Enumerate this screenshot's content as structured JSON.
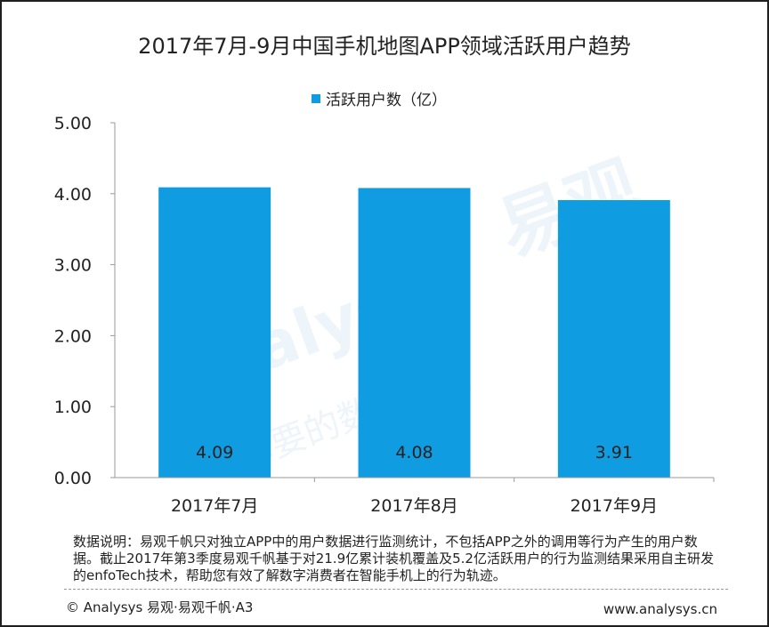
{
  "title": "2017年7月-9月中国手机地图APP领域活跃用户趋势",
  "chart_data": {
    "type": "bar",
    "categories": [
      "2017年7月",
      "2017年8月",
      "2017年9月"
    ],
    "series": [
      {
        "name": "活跃用户数（亿）",
        "values": [
          4.09,
          4.08,
          3.91
        ],
        "color": "#0f9ce0"
      }
    ],
    "ylim": [
      0,
      5
    ],
    "yticks": [
      "0.00",
      "1.00",
      "2.00",
      "3.00",
      "4.00",
      "5.00"
    ],
    "data_labels": [
      "4.09",
      "4.08",
      "3.91"
    ],
    "legend_position": "top-center",
    "grid": false
  },
  "note": "数据说明：易观千帆只对独立APP中的用户数据进行监测统计，不包括APP之外的调用等行为产生的用户数据。截止2017年第3季度易观千帆基于对21.9亿累计装机覆盖及5.2亿活跃用户的行为监测结果采用自主研发的enfoTech技术，帮助您有效了解数字消费者在智能手机上的行为轨迹。",
  "footer": {
    "copyright": "© Analysys 易观·易观千帆·A3",
    "website": "www.analysys.cn"
  },
  "watermark": {
    "logo_text": "Analysys",
    "cn_text": "易观",
    "slogan": "你要的数据分析"
  }
}
